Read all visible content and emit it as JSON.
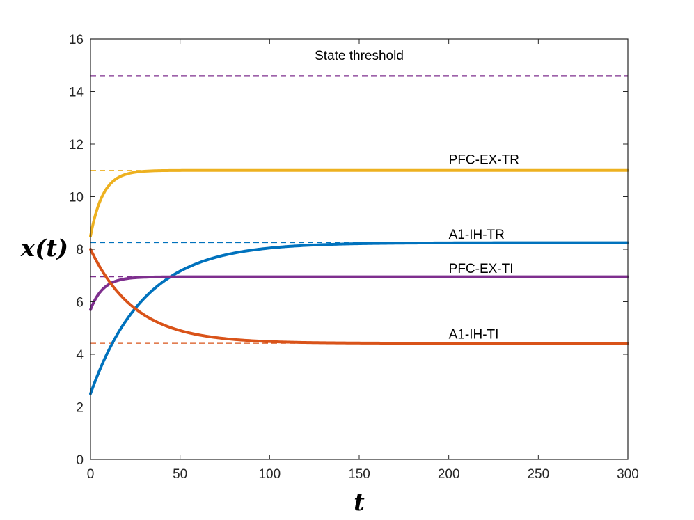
{
  "chart_data": {
    "type": "line",
    "xlabel": "t",
    "ylabel": "x(t)",
    "xlim": [
      0,
      300
    ],
    "ylim": [
      0,
      16
    ],
    "xticks": [
      0,
      50,
      100,
      150,
      200,
      250,
      300
    ],
    "yticks": [
      0,
      2,
      4,
      6,
      8,
      10,
      12,
      14,
      16
    ],
    "grid": false,
    "series": [
      {
        "name": "PFC-EX-TR",
        "color": "#EDB120",
        "initial": 8.5,
        "steady": 11.0,
        "tau": 7,
        "x": [
          0,
          10,
          20,
          30,
          40,
          50,
          100,
          150,
          200,
          250,
          300
        ],
        "y": [
          8.5,
          10.4,
          10.85,
          10.96,
          10.99,
          11.0,
          11.0,
          11.0,
          11.0,
          11.0,
          11.0
        ]
      },
      {
        "name": "A1-IH-TR",
        "color": "#0072BD",
        "initial": 2.5,
        "steady": 8.25,
        "tau": 30,
        "x": [
          0,
          10,
          20,
          30,
          40,
          50,
          100,
          150,
          200,
          250,
          300
        ],
        "y": [
          2.5,
          4.13,
          5.3,
          6.13,
          6.73,
          7.15,
          8.0,
          8.2,
          8.25,
          8.25,
          8.25
        ]
      },
      {
        "name": "PFC-EX-TI",
        "color": "#7E2F8E",
        "initial": 5.7,
        "steady": 6.95,
        "tau": 7,
        "x": [
          0,
          10,
          20,
          30,
          40,
          50,
          100,
          150,
          200,
          250,
          300
        ],
        "y": [
          5.7,
          6.64,
          6.87,
          6.93,
          6.94,
          6.95,
          6.95,
          6.95,
          6.95,
          6.95,
          6.95
        ]
      },
      {
        "name": "A1-IH-TI",
        "color": "#D95319",
        "initial": 8.0,
        "steady": 4.42,
        "tau": 25,
        "x": [
          0,
          10,
          20,
          30,
          40,
          50,
          100,
          150,
          200,
          250,
          300
        ],
        "y": [
          8.0,
          6.82,
          6.03,
          5.5,
          5.14,
          4.9,
          4.49,
          4.43,
          4.42,
          4.42,
          4.42
        ]
      }
    ],
    "reference_lines": [
      {
        "name": "State threshold",
        "y": 14.6,
        "color": "#7E2F8E"
      },
      {
        "name": "PFC-EX-TR steady state",
        "y": 11.0,
        "color": "#EDB120"
      },
      {
        "name": "A1-IH-TR steady state",
        "y": 8.25,
        "color": "#0072BD"
      },
      {
        "name": "PFC-EX-TI steady state",
        "y": 6.95,
        "color": "#7E2F8E"
      },
      {
        "name": "A1-IH-TI steady state",
        "y": 4.42,
        "color": "#D95319"
      }
    ],
    "annotations": [
      {
        "text": "State threshold",
        "x": 150,
        "y": 15.2,
        "anchor": "middle"
      },
      {
        "text": "PFC-EX-TR",
        "x": 200,
        "y": 11.25,
        "anchor": "start"
      },
      {
        "text": "A1-IH-TR",
        "x": 200,
        "y": 8.4,
        "anchor": "start"
      },
      {
        "text": "PFC-EX-TI",
        "x": 200,
        "y": 7.1,
        "anchor": "start"
      },
      {
        "text": "A1-IH-TI",
        "x": 200,
        "y": 4.6,
        "anchor": "start"
      }
    ]
  }
}
